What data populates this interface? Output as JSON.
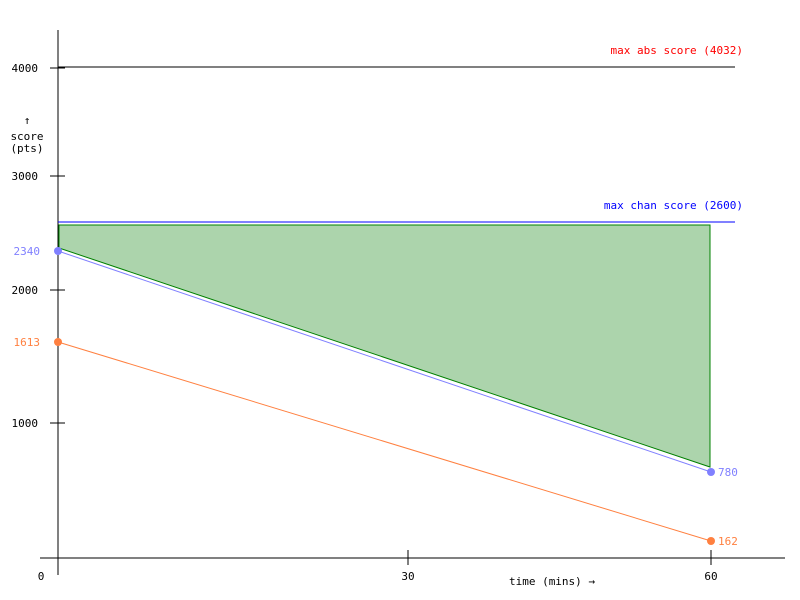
{
  "chart_data": {
    "type": "line",
    "title": "",
    "xlabel": "time (mins) →",
    "ylabel_arrow": "↑",
    "ylabel_lines": [
      "score",
      "(pts)"
    ],
    "x_ticks": [
      0,
      30,
      60
    ],
    "x_tick_labels": [
      "0",
      "30",
      "60"
    ],
    "y_ticks": [
      1000,
      2000,
      3000,
      4000
    ],
    "y_tick_labels": [
      "1000",
      "2000",
      "3000",
      "4000"
    ],
    "xlim": [
      0,
      60
    ],
    "grid": false,
    "reference_lines": [
      {
        "label": "max abs score (4032)",
        "value": 4032,
        "color": "#ff0000"
      },
      {
        "label": "max chan score (2600)",
        "value": 2600,
        "color": "#0000ff"
      }
    ],
    "series": [
      {
        "color": "#8080ff",
        "x": [
          0,
          60
        ],
        "y": [
          2340,
          780
        ],
        "point_labels": [
          "2340",
          "780"
        ]
      },
      {
        "color": "#ff8040",
        "x": [
          0,
          60
        ],
        "y": [
          1613,
          162
        ],
        "point_labels": [
          "1613",
          "162"
        ]
      }
    ],
    "shaded_area": {
      "fill": "#acd4ac",
      "stroke": "#008000",
      "x": [
        0,
        60
      ],
      "upper": [
        2600,
        2600
      ],
      "lower": [
        2340,
        780
      ]
    }
  }
}
